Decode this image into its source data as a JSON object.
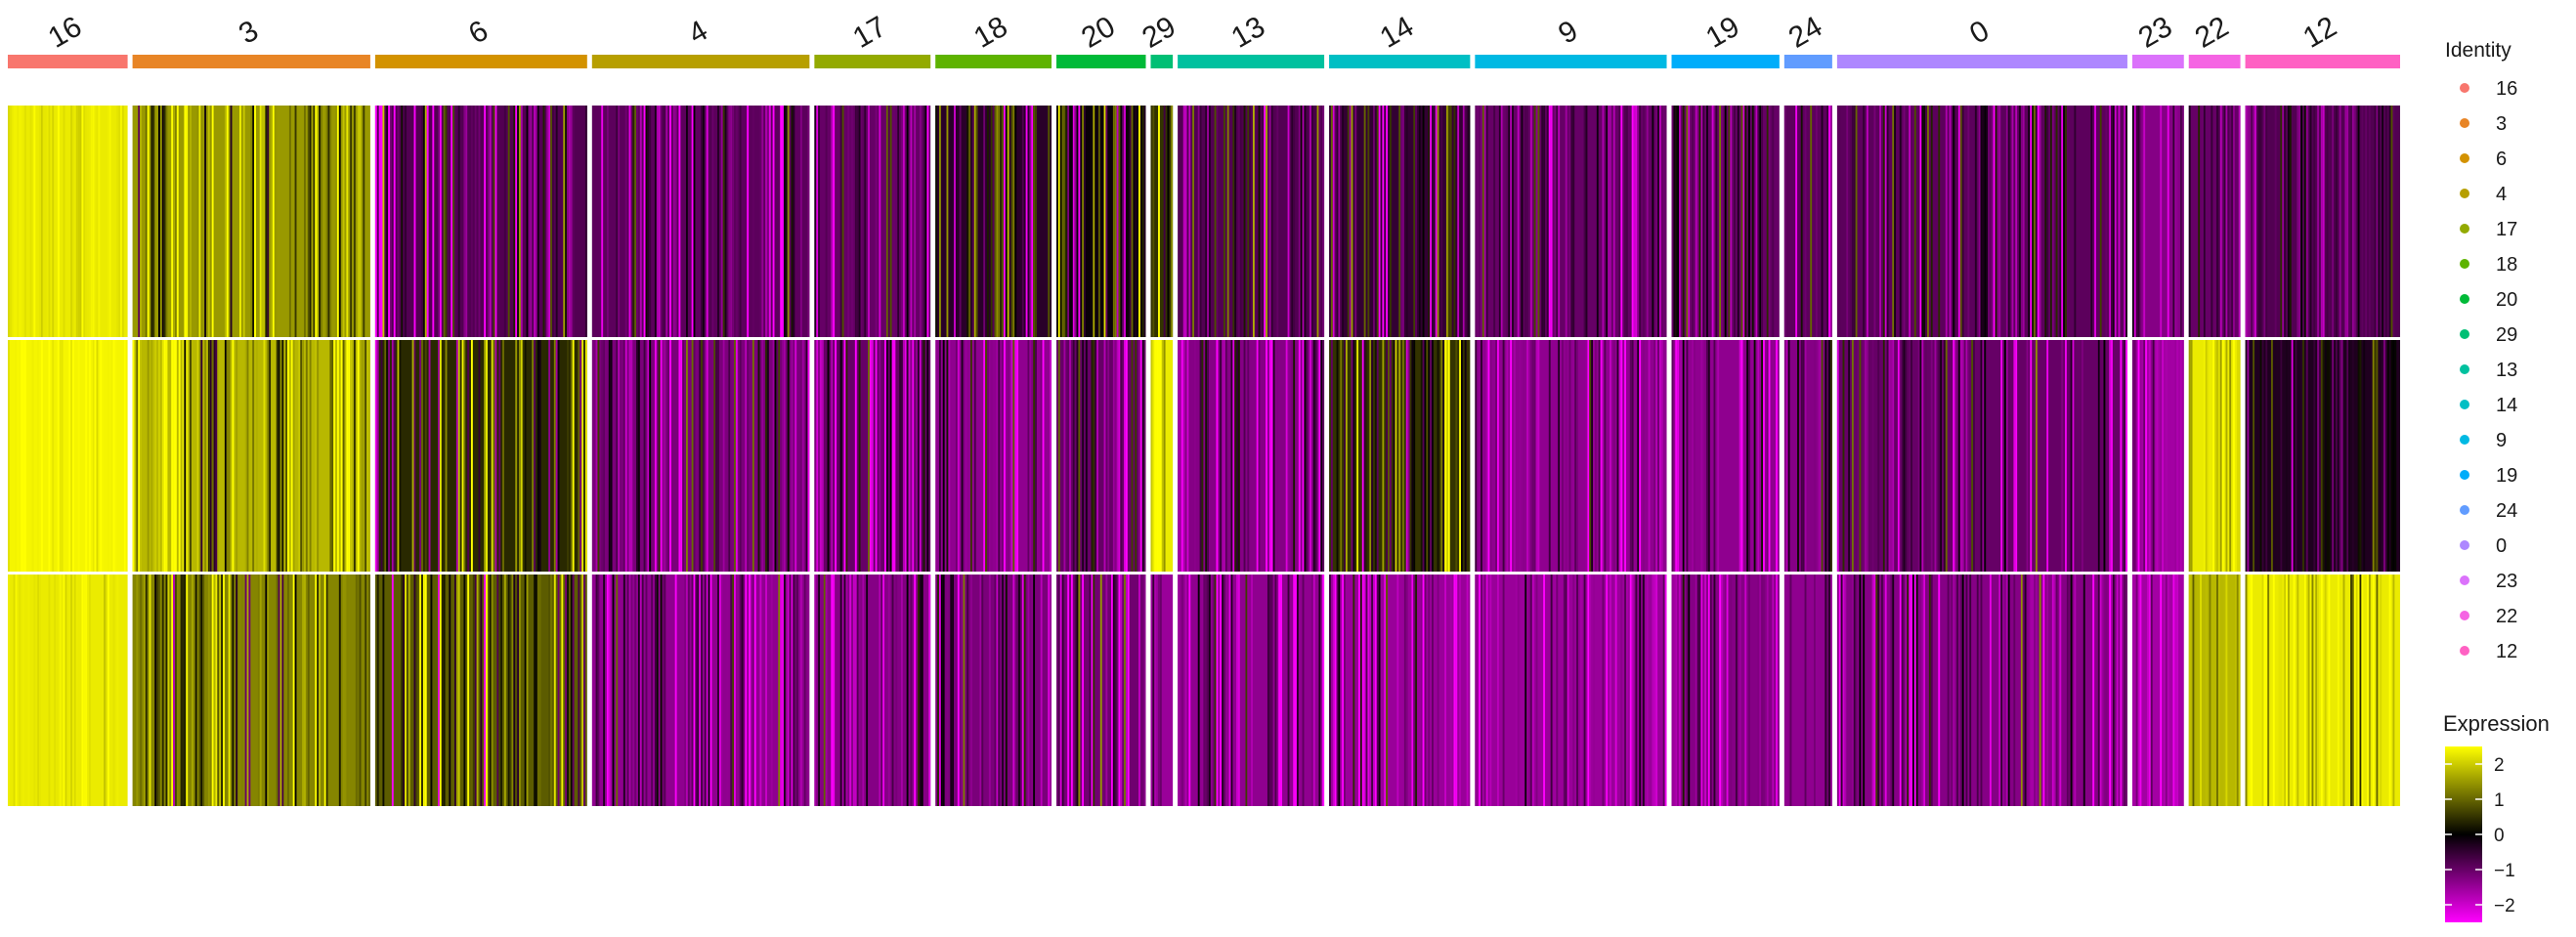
{
  "chart_data": {
    "type": "heatmap",
    "rows": [
      "",
      "",
      ""
    ],
    "clusters": [
      {
        "label": "16",
        "color": "#F8766D",
        "cells": 130,
        "row_mean": [
          2.3,
          2.4,
          2.3
        ],
        "variability": 0.15
      },
      {
        "label": "3",
        "color": "#E88526",
        "cells": 258,
        "row_mean": [
          1.5,
          1.8,
          1.3
        ],
        "variability": 0.9
      },
      {
        "label": "6",
        "color": "#D39200",
        "cells": 230,
        "row_mean": [
          -0.8,
          0.4,
          0.9
        ],
        "variability": 1.1
      },
      {
        "label": "4",
        "color": "#B79F00",
        "cells": 236,
        "row_mean": [
          -0.9,
          -1.2,
          -1.4
        ],
        "variability": 0.8
      },
      {
        "label": "17",
        "color": "#93AA00",
        "cells": 126,
        "row_mean": [
          -1.0,
          -1.0,
          -1.3
        ],
        "variability": 0.8
      },
      {
        "label": "18",
        "color": "#5EB300",
        "cells": 126,
        "row_mean": [
          -0.4,
          -1.4,
          -1.2
        ],
        "variability": 1.0
      },
      {
        "label": "20",
        "color": "#00BA38",
        "cells": 97,
        "row_mean": [
          -0.1,
          -1.0,
          -1.1
        ],
        "variability": 1.0
      },
      {
        "label": "29",
        "color": "#00BF74",
        "cells": 24,
        "row_mean": [
          0.5,
          2.3,
          -1.5
        ],
        "variability": 0.5
      },
      {
        "label": "13",
        "color": "#00C19F",
        "cells": 159,
        "row_mean": [
          -0.8,
          -1.3,
          -1.4
        ],
        "variability": 0.8
      },
      {
        "label": "14",
        "color": "#00BFC4",
        "cells": 153,
        "row_mean": [
          -0.5,
          0.5,
          -1.5
        ],
        "variability": 1.0
      },
      {
        "label": "9",
        "color": "#00B9E3",
        "cells": 208,
        "row_mean": [
          -1.0,
          -1.4,
          -1.5
        ],
        "variability": 0.6
      },
      {
        "label": "19",
        "color": "#00ADFA",
        "cells": 117,
        "row_mean": [
          -1.0,
          -1.4,
          -1.3
        ],
        "variability": 0.7
      },
      {
        "label": "24",
        "color": "#619CFF",
        "cells": 52,
        "row_mean": [
          -0.9,
          -1.3,
          -1.4
        ],
        "variability": 0.7
      },
      {
        "label": "0",
        "color": "#AE87FF",
        "cells": 315,
        "row_mean": [
          -0.9,
          -1.0,
          -1.3
        ],
        "variability": 0.8
      },
      {
        "label": "23",
        "color": "#DB72FB",
        "cells": 56,
        "row_mean": [
          -1.3,
          -1.6,
          -1.6
        ],
        "variability": 0.4
      },
      {
        "label": "22",
        "color": "#F564E3",
        "cells": 56,
        "row_mean": [
          -1.0,
          2.3,
          1.8
        ],
        "variability": 0.4
      },
      {
        "label": "12",
        "color": "#FF61C3",
        "cells": 168,
        "row_mean": [
          -0.8,
          -0.3,
          2.3
        ],
        "variability": 0.6
      }
    ],
    "color_scale": {
      "min": -2.5,
      "max": 2.5,
      "low": "#FF00FF",
      "mid": "#000000",
      "high": "#FFFF00"
    },
    "legend_identity": {
      "title": "Identity",
      "items": [
        {
          "label": "16",
          "color": "#F8766D"
        },
        {
          "label": "3",
          "color": "#E88526"
        },
        {
          "label": "6",
          "color": "#D39200"
        },
        {
          "label": "4",
          "color": "#B79F00"
        },
        {
          "label": "17",
          "color": "#93AA00"
        },
        {
          "label": "18",
          "color": "#5EB300"
        },
        {
          "label": "20",
          "color": "#00BA38"
        },
        {
          "label": "29",
          "color": "#00BF74"
        },
        {
          "label": "13",
          "color": "#00C19F"
        },
        {
          "label": "14",
          "color": "#00BFC4"
        },
        {
          "label": "9",
          "color": "#00B9E3"
        },
        {
          "label": "19",
          "color": "#00ADFA"
        },
        {
          "label": "24",
          "color": "#619CFF"
        },
        {
          "label": "0",
          "color": "#AE87FF"
        },
        {
          "label": "23",
          "color": "#DB72FB"
        },
        {
          "label": "22",
          "color": "#F564E3"
        },
        {
          "label": "12",
          "color": "#FF61C3"
        }
      ]
    },
    "legend_expression": {
      "title": "Expression",
      "ticks": [
        2,
        1,
        0,
        -1,
        -2
      ],
      "tick_labels": [
        "2",
        "1",
        "0",
        "−1",
        "−2"
      ],
      "range": [
        -2.5,
        2.5
      ]
    },
    "legend_placement": "right",
    "grid": false
  }
}
